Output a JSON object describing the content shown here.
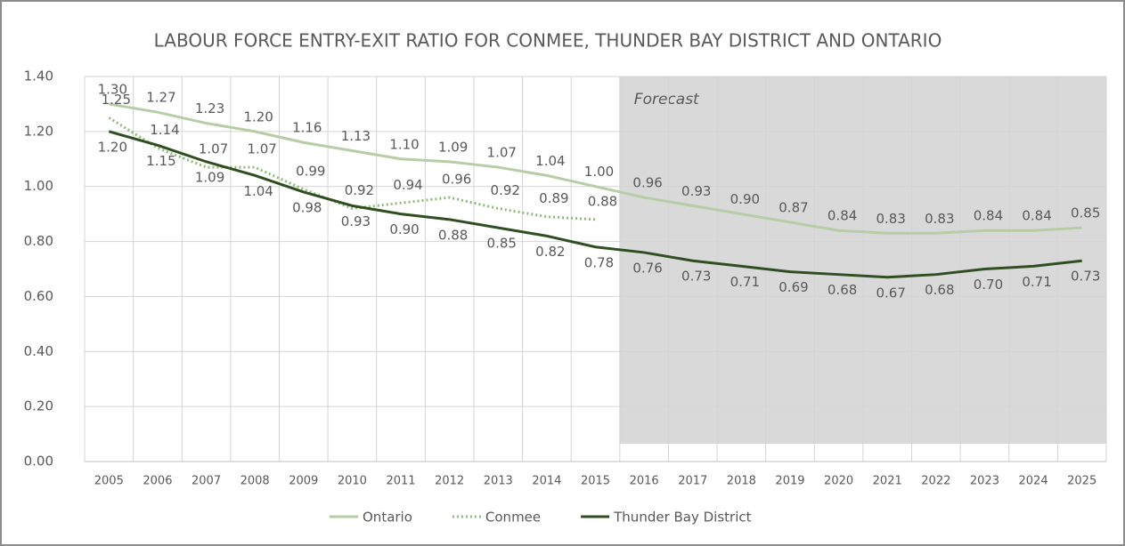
{
  "chart_data": {
    "type": "line",
    "title": "LABOUR FORCE ENTRY-EXIT RATIO FOR CONMEE, THUNDER BAY DISTRICT AND ONTARIO",
    "annotations": [
      {
        "text": "Forecast"
      }
    ],
    "categories": [
      "2005",
      "2006",
      "2007",
      "2008",
      "2009",
      "2010",
      "2011",
      "2012",
      "2013",
      "2014",
      "2015",
      "2016",
      "2017",
      "2018",
      "2019",
      "2020",
      "2021",
      "2022",
      "2023",
      "2024",
      "2025"
    ],
    "series": [
      {
        "name": "Ontario",
        "color": "#b7cda6",
        "style": "solid",
        "values": [
          1.3,
          1.27,
          1.23,
          1.2,
          1.16,
          1.13,
          1.1,
          1.09,
          1.07,
          1.04,
          1.0,
          0.96,
          0.93,
          0.9,
          0.87,
          0.84,
          0.83,
          0.83,
          0.84,
          0.84,
          0.85
        ],
        "value_labels": [
          "1.30",
          "1.27",
          "1.23",
          "1.20",
          "1.16",
          "1.13",
          "1.10",
          "1.09",
          "1.07",
          "1.04",
          "1.00",
          "0.96",
          "0.93",
          "0.90",
          "0.87",
          "0.84",
          "0.83",
          "0.83",
          "0.84",
          "0.84",
          "0.85"
        ]
      },
      {
        "name": "Conmee",
        "color": "#8fbb78",
        "style": "dotted",
        "values": [
          1.25,
          1.14,
          1.07,
          1.07,
          0.99,
          0.92,
          0.94,
          0.96,
          0.92,
          0.89,
          0.88,
          null,
          null,
          null,
          null,
          null,
          null,
          null,
          null,
          null,
          null
        ],
        "value_labels": [
          "1.25",
          "1.14",
          "1.07",
          "1.07",
          "0.99",
          "0.92",
          "0.94",
          "0.96",
          "0.92",
          "0.89",
          "0.88",
          null,
          null,
          null,
          null,
          null,
          null,
          null,
          null,
          null,
          null
        ]
      },
      {
        "name": "Thunder Bay District",
        "color": "#2f4f22",
        "style": "solid",
        "values": [
          1.2,
          1.15,
          1.09,
          1.04,
          0.98,
          0.93,
          0.9,
          0.88,
          0.85,
          0.82,
          0.78,
          0.76,
          0.73,
          0.71,
          0.69,
          0.68,
          0.67,
          0.68,
          0.7,
          0.71,
          0.73
        ],
        "value_labels": [
          "1.20",
          "1.15",
          "1.09",
          "1.04",
          "0.98",
          "0.93",
          "0.90",
          "0.88",
          "0.85",
          "0.82",
          "0.78",
          "0.76",
          "0.73",
          "0.71",
          "0.69",
          "0.68",
          "0.67",
          "0.68",
          "0.70",
          "0.71",
          "0.73"
        ]
      }
    ],
    "ylim": [
      0,
      1.4
    ],
    "yticks": [
      {
        "value": 0,
        "label": "0.00"
      },
      {
        "value": 0.2,
        "label": "0.20"
      },
      {
        "value": 0.4,
        "label": "0.40"
      },
      {
        "value": 0.6,
        "label": "0.60"
      },
      {
        "value": 0.8,
        "label": "0.80"
      },
      {
        "value": 1.0,
        "label": "1.00"
      },
      {
        "value": 1.2,
        "label": "1.20"
      },
      {
        "value": 1.4,
        "label": "1.40"
      }
    ],
    "grid": true,
    "legend": "bottom"
  }
}
